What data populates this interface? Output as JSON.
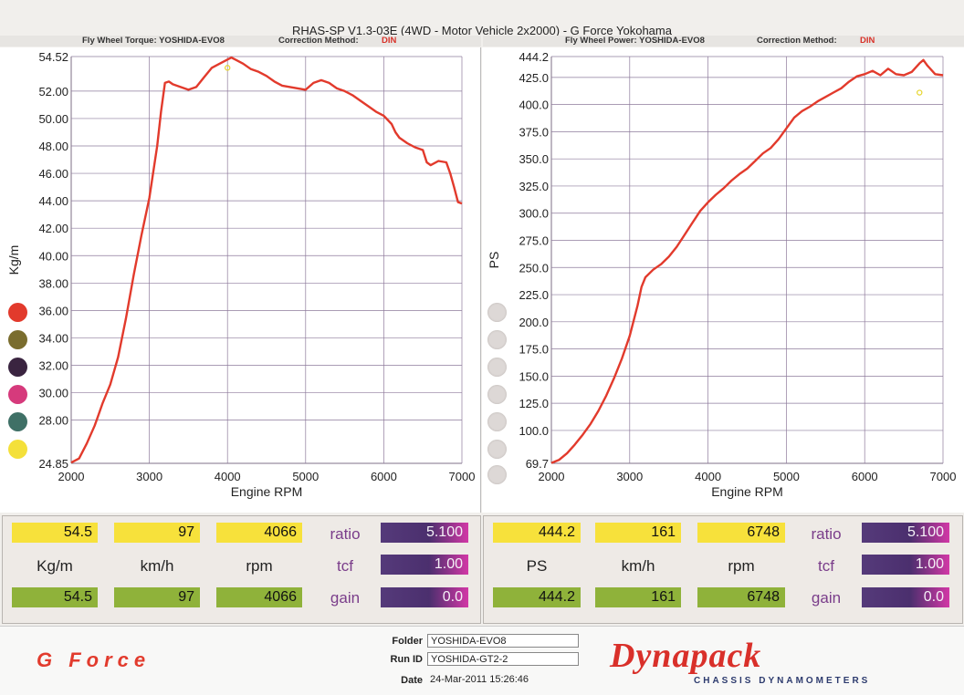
{
  "header": {
    "title": "RHAS-SP V1.3-03E  (4WD - Motor Vehicle 2x2000) - G Force Yokohama",
    "left_sub": "Fly Wheel Torque: YOSHIDA-EVO8",
    "right_sub": "Fly Wheel Power: YOSHIDA-EVO8",
    "correction_label": "Correction Method:",
    "correction_value": "DIN"
  },
  "colors": {
    "curve": "#e23a2c",
    "grid": "#8e7b9c",
    "gray_dot": "#ddd8d6",
    "dots": [
      "#e23a2c",
      "#7a6d2e",
      "#3a2440",
      "#d63a7c",
      "#3f7066",
      "#f4e03a"
    ]
  },
  "chart_data": [
    {
      "type": "line",
      "xlabel": "Engine RPM",
      "ylabel": "Kg/m",
      "xlim": [
        2000,
        7000
      ],
      "ylim": [
        24.85,
        54.52
      ],
      "xticks": [
        "2000",
        "3000",
        "4000",
        "5000",
        "6000",
        "7000"
      ],
      "yticks": [
        "54.52",
        "52.00",
        "50.00",
        "48.00",
        "46.00",
        "44.00",
        "42.00",
        "40.00",
        "38.00",
        "36.00",
        "34.00",
        "32.00",
        "30.00",
        "28.00",
        "24.85"
      ],
      "ytick_values": [
        54.52,
        52,
        50,
        48,
        46,
        44,
        42,
        40,
        38,
        36,
        34,
        32,
        30,
        28,
        24.85
      ],
      "grid": true,
      "marker": {
        "x": 4000,
        "y": 53.7
      },
      "series": [
        {
          "x": [
            2000,
            2100,
            2200,
            2300,
            2350,
            2400,
            2500,
            2600,
            2700,
            2800,
            2900,
            3000,
            3100,
            3150,
            3200,
            3250,
            3300,
            3400,
            3500,
            3600,
            3700,
            3800,
            3900,
            4000,
            4050,
            4100,
            4200,
            4300,
            4400,
            4500,
            4600,
            4700,
            4800,
            4900,
            5000,
            5100,
            5200,
            5300,
            5400,
            5500,
            5600,
            5700,
            5800,
            5900,
            6000,
            6100,
            6150,
            6200,
            6300,
            6400,
            6500,
            6550,
            6600,
            6700,
            6800,
            6850,
            6900,
            6950,
            7000
          ],
          "values": [
            24.9,
            25.2,
            26.3,
            27.6,
            28.4,
            29.2,
            30.6,
            32.6,
            35.4,
            38.6,
            41.5,
            44.2,
            48.0,
            50.5,
            52.6,
            52.7,
            52.5,
            52.3,
            52.1,
            52.3,
            53.0,
            53.7,
            54.0,
            54.3,
            54.45,
            54.3,
            54.0,
            53.6,
            53.4,
            53.1,
            52.7,
            52.4,
            52.3,
            52.2,
            52.1,
            52.6,
            52.8,
            52.6,
            52.2,
            52.0,
            51.7,
            51.3,
            50.9,
            50.5,
            50.2,
            49.6,
            49.0,
            48.6,
            48.2,
            47.9,
            47.7,
            46.8,
            46.6,
            46.9,
            46.8,
            46.0,
            45.0,
            43.9,
            43.8
          ]
        }
      ]
    },
    {
      "type": "line",
      "xlabel": "Engine RPM",
      "ylabel": "PS",
      "xlim": [
        2000,
        7000
      ],
      "ylim": [
        69.7,
        444.2
      ],
      "xticks": [
        "2000",
        "3000",
        "4000",
        "5000",
        "6000",
        "7000"
      ],
      "yticks": [
        "444.2",
        "425.0",
        "400.0",
        "375.0",
        "350.0",
        "325.0",
        "300.0",
        "275.0",
        "250.0",
        "225.0",
        "200.0",
        "175.0",
        "150.0",
        "125.0",
        "100.0",
        "69.7"
      ],
      "ytick_values": [
        444.2,
        425,
        400,
        375,
        350,
        325,
        300,
        275,
        250,
        225,
        200,
        175,
        150,
        125,
        100,
        69.7
      ],
      "grid": true,
      "marker": {
        "x": 6700,
        "y": 411
      },
      "series": [
        {
          "x": [
            2000,
            2100,
            2200,
            2300,
            2400,
            2500,
            2600,
            2700,
            2800,
            2900,
            3000,
            3100,
            3150,
            3200,
            3300,
            3400,
            3500,
            3600,
            3700,
            3800,
            3900,
            4000,
            4100,
            4200,
            4300,
            4400,
            4500,
            4600,
            4700,
            4800,
            4900,
            5000,
            5100,
            5200,
            5300,
            5400,
            5500,
            5600,
            5700,
            5800,
            5900,
            6000,
            6100,
            6200,
            6300,
            6400,
            6500,
            6600,
            6700,
            6750,
            6800,
            6900,
            7000
          ],
          "values": [
            70,
            73,
            79,
            87,
            96,
            106,
            118,
            132,
            148,
            166,
            187,
            215,
            232,
            241,
            248,
            253,
            260,
            269,
            280,
            291,
            302,
            310,
            317,
            323,
            330,
            336,
            341,
            348,
            355,
            360,
            368,
            378,
            388,
            394,
            398,
            403,
            407,
            411,
            415,
            421,
            426,
            428,
            431,
            427,
            433,
            428,
            427,
            430,
            438,
            441,
            436,
            428,
            427
          ]
        }
      ]
    }
  ],
  "readout": {
    "left": {
      "row1": [
        "54.5",
        "97",
        "4066"
      ],
      "units": [
        "Kg/m",
        "km/h",
        "rpm"
      ],
      "row3": [
        "54.5",
        "97",
        "4066"
      ],
      "params": [
        {
          "label": "ratio",
          "value": "5.100"
        },
        {
          "label": "tcf",
          "value": "1.00"
        },
        {
          "label": "gain",
          "value": "0.0"
        }
      ]
    },
    "right": {
      "row1": [
        "444.2",
        "161",
        "6748"
      ],
      "units": [
        "PS",
        "km/h",
        "rpm"
      ],
      "row3": [
        "444.2",
        "161",
        "6748"
      ],
      "params": [
        {
          "label": "ratio",
          "value": "5.100"
        },
        {
          "label": "tcf",
          "value": "1.00"
        },
        {
          "label": "gain",
          "value": "0.0"
        }
      ]
    }
  },
  "footer": {
    "brand": "G Force",
    "folder_label": "Folder",
    "folder_value": "YOSHIDA-EVO8",
    "run_label": "Run ID",
    "run_value": "YOSHIDA-GT2-2",
    "date_label": "Date",
    "date_value": "24-Mar-2011  15:26:46",
    "logo_text": "Dynapack",
    "logo_tagline": "CHASSIS  DYNAMOMETERS"
  }
}
